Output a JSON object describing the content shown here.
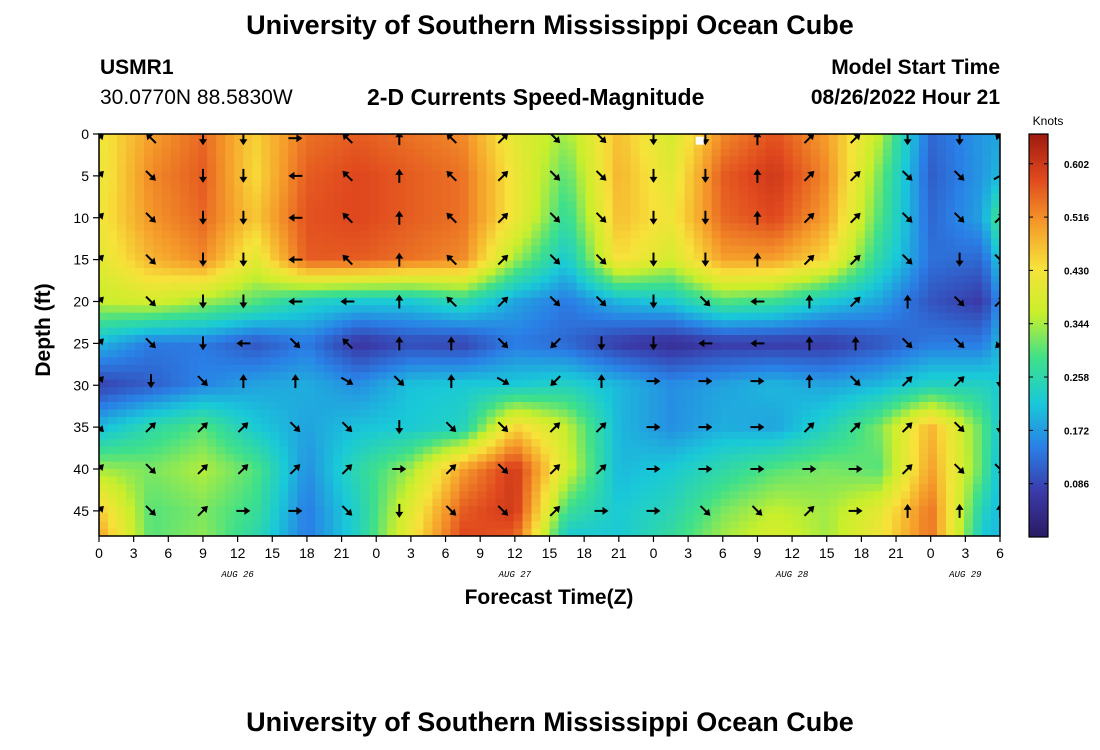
{
  "header": {
    "title": "University of Southern Mississippi Ocean Cube",
    "footer_title": "University of Southern Mississippi Ocean Cube",
    "station_id": "USMR1",
    "station_coords": "30.0770N  88.5830W",
    "chart_title": "2-D Currents Speed-Magnitude",
    "model_start_label": "Model Start Time",
    "model_start_value": "08/26/2022 Hour 21"
  },
  "chart_data": {
    "type": "heatmap",
    "title": "2-D Currents Speed-Magnitude",
    "xlabel": "Forecast Time(Z)",
    "ylabel": "Depth (ft)",
    "colorbar_label": "Knots",
    "colorbar_ticks": [
      0.086,
      0.172,
      0.258,
      0.344,
      0.43,
      0.516,
      0.602
    ],
    "colorbar_tick_labels": [
      "0.086",
      "0.172",
      "0.258",
      "0.344",
      "0.430",
      "0.516",
      "0.602"
    ],
    "colorbar_range": [
      0.0,
      0.65
    ],
    "colors": [
      "#2a1a63",
      "#3a3aa8",
      "#2a7fe6",
      "#19c9d8",
      "#3fe08a",
      "#c9ef2b",
      "#f7e23a",
      "#f59a2a",
      "#e0481e",
      "#9e1b0f"
    ],
    "x_range_hours": [
      0,
      78
    ],
    "x_ticks_hours": [
      0,
      3,
      6,
      9,
      12,
      15,
      18,
      21,
      24,
      27,
      30,
      33,
      36,
      39,
      42,
      45,
      48,
      51,
      54,
      57,
      60,
      63,
      66,
      69,
      72,
      75,
      78
    ],
    "x_tick_labels": [
      "0",
      "3",
      "6",
      "9",
      "12",
      "15",
      "18",
      "21",
      "0",
      "3",
      "6",
      "9",
      "12",
      "15",
      "18",
      "21",
      "0",
      "3",
      "6",
      "9",
      "12",
      "15",
      "18",
      "21",
      "0",
      "3",
      "6"
    ],
    "date_label_hours": [
      12,
      36,
      60,
      75
    ],
    "date_labels": [
      "AUG 26",
      "AUG 27",
      "AUG 28",
      "AUG 29"
    ],
    "y_range_ft": [
      0,
      48
    ],
    "y_ticks": [
      0,
      5,
      10,
      15,
      20,
      25,
      30,
      35,
      40,
      45
    ],
    "y_tick_labels": [
      "0",
      "5",
      "10",
      "15",
      "20",
      "25",
      "30",
      "35",
      "40",
      "45"
    ],
    "grid": false,
    "arrow_depths_ft": [
      0.5,
      5,
      10,
      15,
      20,
      25,
      29.5,
      35,
      40,
      45
    ],
    "arrow_times_hours": [
      0,
      4.5,
      9,
      12.5,
      17,
      21.5,
      26,
      30.5,
      35,
      39.5,
      43.5,
      48,
      52.5,
      57,
      61.5,
      65.5,
      70,
      74.5,
      78
    ],
    "speed_grid": {
      "depths_ft": [
        0,
        5,
        10,
        15,
        20,
        25,
        30,
        35,
        40,
        45,
        48
      ],
      "times_hours": [
        0,
        4.5,
        9,
        13.5,
        18,
        22.5,
        27,
        31.5,
        36,
        40.5,
        45,
        49.5,
        54,
        58.5,
        63,
        67.5,
        72,
        76.5,
        78
      ],
      "values": [
        [
          0.42,
          0.5,
          0.55,
          0.45,
          0.54,
          0.56,
          0.54,
          0.52,
          0.4,
          0.34,
          0.47,
          0.38,
          0.52,
          0.57,
          0.5,
          0.36,
          0.12,
          0.17,
          0.18
        ],
        [
          0.41,
          0.52,
          0.56,
          0.44,
          0.56,
          0.58,
          0.56,
          0.54,
          0.42,
          0.3,
          0.48,
          0.4,
          0.56,
          0.6,
          0.52,
          0.32,
          0.11,
          0.17,
          0.2
        ],
        [
          0.42,
          0.51,
          0.55,
          0.46,
          0.57,
          0.58,
          0.56,
          0.54,
          0.42,
          0.27,
          0.47,
          0.42,
          0.55,
          0.58,
          0.5,
          0.3,
          0.12,
          0.18,
          0.3
        ],
        [
          0.4,
          0.48,
          0.52,
          0.4,
          0.56,
          0.56,
          0.54,
          0.52,
          0.34,
          0.22,
          0.44,
          0.38,
          0.5,
          0.5,
          0.44,
          0.26,
          0.13,
          0.12,
          0.22
        ],
        [
          0.36,
          0.38,
          0.34,
          0.3,
          0.24,
          0.22,
          0.22,
          0.26,
          0.18,
          0.14,
          0.2,
          0.22,
          0.3,
          0.28,
          0.22,
          0.18,
          0.1,
          0.07,
          0.16
        ],
        [
          0.2,
          0.14,
          0.14,
          0.1,
          0.14,
          0.06,
          0.09,
          0.08,
          0.14,
          0.12,
          0.07,
          0.05,
          0.07,
          0.07,
          0.07,
          0.1,
          0.14,
          0.14,
          0.2
        ],
        [
          0.08,
          0.11,
          0.15,
          0.18,
          0.19,
          0.16,
          0.21,
          0.22,
          0.22,
          0.24,
          0.2,
          0.16,
          0.18,
          0.2,
          0.18,
          0.2,
          0.24,
          0.24,
          0.22
        ],
        [
          0.2,
          0.26,
          0.3,
          0.22,
          0.18,
          0.21,
          0.22,
          0.24,
          0.45,
          0.36,
          0.2,
          0.16,
          0.19,
          0.18,
          0.24,
          0.32,
          0.48,
          0.3,
          0.22
        ],
        [
          0.34,
          0.32,
          0.35,
          0.3,
          0.16,
          0.26,
          0.34,
          0.5,
          0.6,
          0.38,
          0.2,
          0.22,
          0.26,
          0.3,
          0.32,
          0.3,
          0.5,
          0.3,
          0.2
        ],
        [
          0.46,
          0.3,
          0.32,
          0.28,
          0.14,
          0.24,
          0.4,
          0.56,
          0.6,
          0.28,
          0.22,
          0.25,
          0.32,
          0.36,
          0.34,
          0.4,
          0.54,
          0.24,
          0.2
        ],
        [
          0.5,
          0.3,
          0.33,
          0.26,
          0.14,
          0.24,
          0.42,
          0.58,
          0.56,
          0.22,
          0.22,
          0.27,
          0.34,
          0.38,
          0.34,
          0.42,
          0.54,
          0.22,
          0.2
        ]
      ]
    },
    "direction_grid_deg": [
      [
        45,
        315,
        180,
        180,
        90,
        315,
        0,
        315,
        45,
        135,
        135,
        180,
        180,
        0,
        45,
        45,
        180,
        180,
        315
      ],
      [
        45,
        135,
        180,
        180,
        270,
        315,
        0,
        315,
        45,
        135,
        135,
        180,
        180,
        0,
        45,
        45,
        135,
        135,
        60
      ],
      [
        45,
        135,
        180,
        180,
        270,
        315,
        0,
        315,
        45,
        135,
        135,
        180,
        180,
        0,
        45,
        45,
        135,
        135,
        45
      ],
      [
        45,
        135,
        180,
        180,
        270,
        315,
        0,
        315,
        45,
        135,
        135,
        180,
        180,
        0,
        45,
        45,
        135,
        180,
        135
      ],
      [
        45,
        135,
        180,
        180,
        270,
        270,
        0,
        315,
        45,
        135,
        135,
        180,
        135,
        270,
        0,
        45,
        0,
        135,
        45
      ],
      [
        45,
        135,
        180,
        270,
        135,
        315,
        0,
        0,
        135,
        225,
        180,
        180,
        270,
        270,
        0,
        0,
        135,
        135,
        225
      ],
      [
        45,
        180,
        135,
        0,
        0,
        120,
        135,
        0,
        120,
        225,
        0,
        90,
        90,
        90,
        0,
        135,
        45,
        45,
        180
      ],
      [
        135,
        45,
        45,
        45,
        135,
        135,
        180,
        135,
        135,
        45,
        45,
        90,
        90,
        90,
        45,
        45,
        45,
        135,
        180
      ],
      [
        45,
        135,
        45,
        45,
        45,
        45,
        90,
        45,
        135,
        45,
        45,
        90,
        90,
        90,
        90,
        90,
        45,
        135,
        135
      ],
      [
        45,
        135,
        45,
        90,
        90,
        135,
        180,
        135,
        135,
        45,
        90,
        90,
        135,
        135,
        45,
        90,
        0,
        0,
        0
      ]
    ],
    "marker": {
      "time_hours": 52,
      "depth_ft": 0.8
    }
  }
}
